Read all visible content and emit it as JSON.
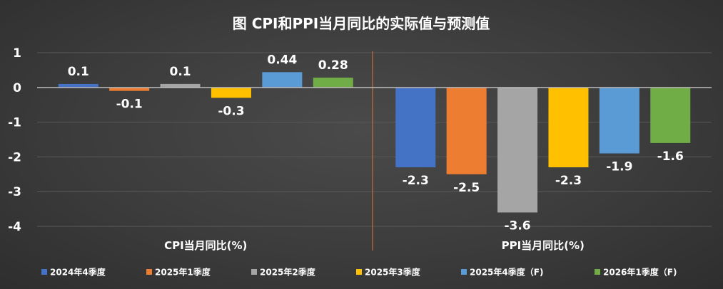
{
  "chart_data": {
    "type": "bar",
    "title": "图 CPI和PPI当月同比的实际值与预测值",
    "categories": [
      "CPI当月同比(%)",
      "PPI当月同比(%)"
    ],
    "y_ticks": [
      "1",
      "0",
      "-1",
      "-2",
      "-3",
      "-4"
    ],
    "ylim": [
      -4,
      1
    ],
    "grid": true,
    "legend_position": "bottom",
    "series": [
      {
        "name": "2024年4季度",
        "color": "#4472c4",
        "values": [
          0.1,
          -2.3
        ],
        "labels": [
          "0.1",
          "-2.3"
        ]
      },
      {
        "name": "2025年1季度",
        "color": "#ed7d31",
        "values": [
          -0.1,
          -2.5
        ],
        "labels": [
          "-0.1",
          "-2.5"
        ]
      },
      {
        "name": "2025年2季度",
        "color": "#a5a5a5",
        "values": [
          0.1,
          -3.6
        ],
        "labels": [
          "0.1",
          "-3.6"
        ]
      },
      {
        "name": "2025年3季度",
        "color": "#ffc000",
        "values": [
          -0.3,
          -2.3
        ],
        "labels": [
          "-0.3",
          "-2.3"
        ]
      },
      {
        "name": "2025年4季度（F)",
        "color": "#5b9bd5",
        "values": [
          0.44,
          -1.9
        ],
        "labels": [
          "0.44",
          "-1.9"
        ]
      },
      {
        "name": "2026年1季度（F)",
        "color": "#70ad47",
        "values": [
          0.28,
          -1.6
        ],
        "labels": [
          "0.28",
          "-1.6"
        ]
      }
    ]
  }
}
